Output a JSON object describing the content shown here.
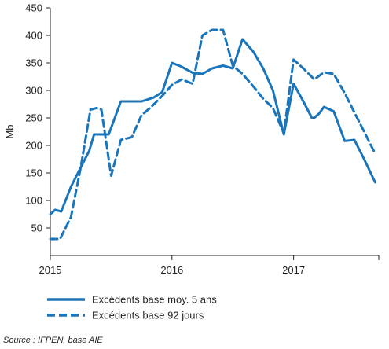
{
  "chart_data": {
    "type": "line",
    "ylabel": "Mb",
    "xlabel": "",
    "ylim": [
      0,
      450
    ],
    "yticks": [
      50,
      100,
      150,
      200,
      250,
      300,
      350,
      400,
      450
    ],
    "xlim": [
      2015.0,
      2017.7
    ],
    "xticks": [
      {
        "value": 2015,
        "label": "2015"
      },
      {
        "value": 2016,
        "label": "2016"
      },
      {
        "value": 2017,
        "label": "2017"
      }
    ],
    "grid": false,
    "legend_position": "bottom-left",
    "series": [
      {
        "name": "Excédents base moy. 5 ans",
        "style": "solid",
        "color": "#1a75bb",
        "x": [
          2015.0,
          2015.04,
          2015.09,
          2015.17,
          2015.25,
          2015.32,
          2015.36,
          2015.48,
          2015.58,
          2015.75,
          2015.85,
          2015.92,
          2016.0,
          2016.08,
          2016.12,
          2016.17,
          2016.25,
          2016.33,
          2016.42,
          2016.5,
          2016.58,
          2016.67,
          2016.75,
          2016.83,
          2016.92,
          2017.0,
          2017.08,
          2017.15,
          2017.17,
          2017.21,
          2017.25,
          2017.33,
          2017.42,
          2017.5,
          2017.58,
          2017.67
        ],
        "y": [
          75,
          83,
          80,
          125,
          160,
          190,
          220,
          220,
          280,
          280,
          287,
          297,
          350,
          343,
          338,
          332,
          330,
          340,
          345,
          340,
          393,
          370,
          340,
          300,
          220,
          312,
          280,
          250,
          250,
          258,
          270,
          262,
          208,
          210,
          175,
          133
        ]
      },
      {
        "name": "Excédents base 92 jours",
        "style": "dashed",
        "color": "#1a75bb",
        "x": [
          2015.0,
          2015.08,
          2015.17,
          2015.25,
          2015.33,
          2015.38,
          2015.42,
          2015.5,
          2015.58,
          2015.67,
          2015.75,
          2015.83,
          2015.92,
          2016.0,
          2016.08,
          2016.17,
          2016.25,
          2016.33,
          2016.42,
          2016.5,
          2016.58,
          2016.67,
          2016.75,
          2016.83,
          2016.92,
          2017.0,
          2017.08,
          2017.17,
          2017.25,
          2017.33,
          2017.42,
          2017.5,
          2017.58,
          2017.67
        ],
        "y": [
          30,
          30,
          70,
          160,
          265,
          268,
          265,
          145,
          210,
          215,
          255,
          270,
          290,
          310,
          320,
          312,
          400,
          410,
          410,
          345,
          330,
          307,
          285,
          268,
          222,
          356,
          340,
          320,
          333,
          330,
          295,
          260,
          225,
          185
        ]
      }
    ]
  },
  "source": "Source : IFPEN, base AIE"
}
